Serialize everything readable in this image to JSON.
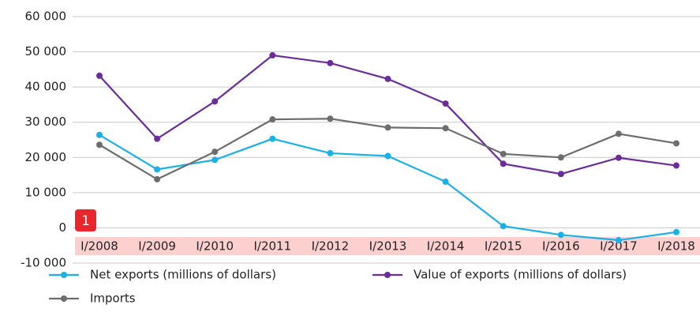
{
  "chart_data": {
    "type": "line",
    "categories": [
      "I/2008",
      "I/2009",
      "I/2010",
      "I/2011",
      "I/2012",
      "I/2013",
      "I/2014",
      "I/2015",
      "I/2016",
      "I/2017",
      "I/2018"
    ],
    "series": [
      {
        "name": "Net exports (millions of dollars)",
        "color": "#1ab0e8",
        "values": [
          26400,
          16600,
          19300,
          25300,
          21200,
          20400,
          13100,
          500,
          -2000,
          -3500,
          -1200
        ]
      },
      {
        "name": "Value of exports (millions of dollars)",
        "color": "#6a2d9a",
        "values": [
          43200,
          25300,
          35900,
          49000,
          46800,
          42300,
          35300,
          18200,
          15300,
          19900,
          17700
        ]
      },
      {
        "name": "Imports",
        "color": "#6d6d6d",
        "values": [
          23600,
          13800,
          21600,
          30800,
          31000,
          28500,
          28300,
          21000,
          20000,
          26700,
          24000
        ]
      }
    ],
    "ylim": [
      -10000,
      60000
    ],
    "yticks": [
      {
        "value": -10000,
        "label": "-10 000"
      },
      0,
      {
        "value": 10000,
        "label": "10 000"
      },
      {
        "value": 20000,
        "label": "20 000"
      },
      {
        "value": 30000,
        "label": "30 000"
      },
      {
        "value": 40000,
        "label": "40 000"
      },
      {
        "value": 50000,
        "label": "50 000"
      },
      {
        "value": 60000,
        "label": "60 000"
      }
    ],
    "grid": true,
    "annotation": "1"
  }
}
